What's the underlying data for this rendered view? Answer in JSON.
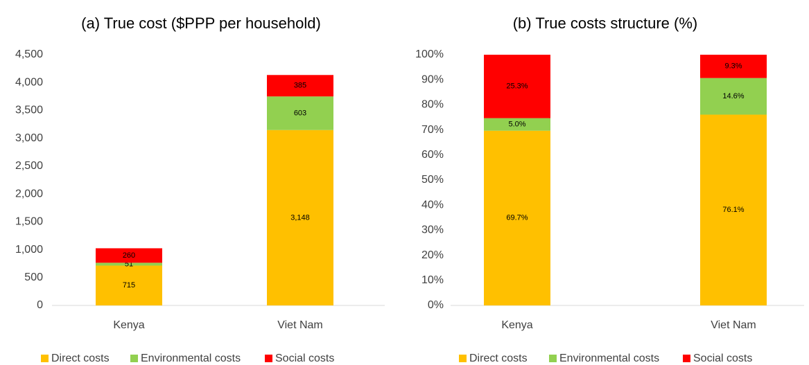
{
  "chart_data": [
    {
      "type": "stacked_bar",
      "title": "(a) True cost ($PPP per household)",
      "categories": [
        "Kenya",
        "Viet Nam"
      ],
      "series": [
        {
          "name": "Direct costs",
          "color": "#FFC000",
          "values": [
            715,
            3148
          ],
          "value_labels": [
            "715",
            "3,148"
          ]
        },
        {
          "name": "Environmental costs",
          "color": "#92D050",
          "values": [
            51,
            603
          ]
        },
        {
          "name": "Social costs",
          "color": "#FF0000",
          "values": [
            260,
            385
          ]
        }
      ],
      "ylim": [
        0,
        4500
      ],
      "yticks": [
        0,
        500,
        {
          "value": 1000,
          "label": "1,000"
        },
        {
          "value": 1500,
          "label": "1,500"
        },
        {
          "value": 2000,
          "label": "2,000"
        },
        {
          "value": 2500,
          "label": "2,500"
        },
        {
          "value": 3000,
          "label": "3,000"
        },
        {
          "value": 3500,
          "label": "3,500"
        },
        {
          "value": 4000,
          "label": "4,000"
        },
        {
          "value": 4500,
          "label": "4,500"
        }
      ],
      "grid": false,
      "legend": "bottom"
    },
    {
      "type": "stacked_bar",
      "title": "(b) True costs structure (%)",
      "categories": [
        "Kenya",
        "Viet Nam"
      ],
      "series": [
        {
          "name": "Direct costs",
          "color": "#FFC000",
          "values": [
            69.7,
            76.1
          ],
          "value_labels": [
            "69.7%",
            "76.1%"
          ]
        },
        {
          "name": "Environmental costs",
          "color": "#92D050",
          "values": [
            5.0,
            14.6
          ],
          "value_labels": [
            "5.0%",
            "14.6%"
          ]
        },
        {
          "name": "Social costs",
          "color": "#FF0000",
          "values": [
            25.3,
            9.3
          ],
          "value_labels": [
            "25.3%",
            "9.3%"
          ]
        }
      ],
      "ylim": [
        0,
        100
      ],
      "yticks": [
        {
          "value": 0,
          "label": "0%"
        },
        {
          "value": 10,
          "label": "10%"
        },
        {
          "value": 20,
          "label": "20%"
        },
        {
          "value": 30,
          "label": "30%"
        },
        {
          "value": 40,
          "label": "40%"
        },
        {
          "value": 50,
          "label": "50%"
        },
        {
          "value": 60,
          "label": "60%"
        },
        {
          "value": 70,
          "label": "70%"
        },
        {
          "value": 80,
          "label": "80%"
        },
        {
          "value": 90,
          "label": "90%"
        },
        {
          "value": 100,
          "label": "100%"
        }
      ],
      "grid": false,
      "legend": "bottom"
    }
  ]
}
